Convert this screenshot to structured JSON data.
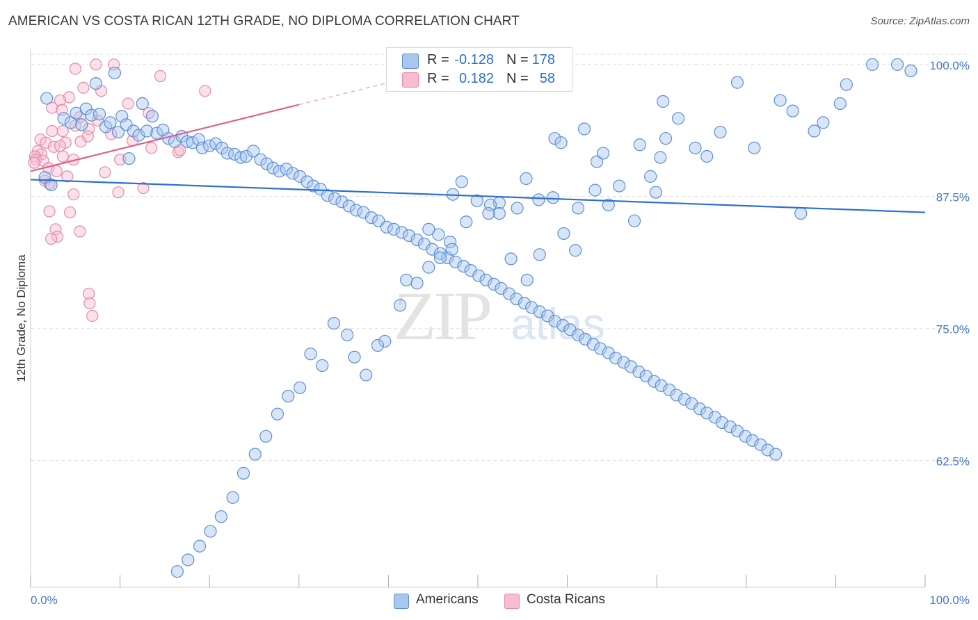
{
  "title": "AMERICAN VS COSTA RICAN 12TH GRADE, NO DIPLOMA CORRELATION CHART",
  "source": "Source: ZipAtlas.com",
  "watermark": {
    "zip": "ZIP",
    "atlas": "atlas"
  },
  "colors": {
    "blue_fill": "#a9c6ee",
    "blue_stroke": "#5b8fd6",
    "blue_line": "#2d6fd2",
    "pink_fill": "#f7bcd0",
    "pink_stroke": "#e68aa8",
    "pink_line": "#e0608a",
    "axis_text": "#4477cc",
    "grid": "#dddddd"
  },
  "legend": {
    "rows": [
      {
        "r_label": "R =",
        "r_value": "-0.128",
        "n_label": "N =",
        "n_value": "178"
      },
      {
        "r_label": "R =",
        "r_value": "0.182",
        "n_label": "N =",
        "n_value": "58"
      }
    ]
  },
  "bottom_legend": {
    "americans": "Americans",
    "costa_ricans": "Costa Ricans"
  },
  "chart_data": {
    "type": "scatter",
    "title": "AMERICAN VS COSTA RICAN 12TH GRADE, NO DIPLOMA CORRELATION CHART",
    "xlabel": "",
    "ylabel": "12th Grade, No Diploma",
    "xlim": [
      0,
      100
    ],
    "ylim": [
      50.5,
      101.5
    ],
    "x_tick_labels": [
      "0.0%",
      "100.0%"
    ],
    "y_ticks": [
      62.5,
      75.0,
      87.5,
      100.0
    ],
    "y_tick_labels": [
      "62.5%",
      "75.0%",
      "87.5%",
      "100.0%"
    ],
    "grid": true,
    "series": [
      {
        "name": "Americans",
        "r": -0.128,
        "n": 178,
        "trend": {
          "x": [
            0,
            100
          ],
          "y": [
            89.1,
            86.0
          ],
          "dashed_from": null
        },
        "points": [
          [
            1.8,
            96.8
          ],
          [
            7.3,
            98.2
          ],
          [
            9.4,
            99.2
          ],
          [
            12.5,
            96.3
          ],
          [
            13.6,
            95.1
          ],
          [
            8.4,
            94.1
          ],
          [
            9.8,
            93.6
          ],
          [
            11.0,
            91.1
          ],
          [
            1.6,
            89.3
          ],
          [
            2.3,
            88.6
          ],
          [
            3.7,
            94.9
          ],
          [
            4.5,
            94.5
          ],
          [
            5.1,
            95.4
          ],
          [
            5.7,
            94.3
          ],
          [
            6.2,
            95.8
          ],
          [
            6.8,
            95.2
          ],
          [
            7.7,
            95.3
          ],
          [
            8.9,
            94.5
          ],
          [
            10.2,
            95.1
          ],
          [
            10.7,
            94.3
          ],
          [
            11.5,
            93.7
          ],
          [
            12.1,
            93.3
          ],
          [
            13.0,
            93.7
          ],
          [
            14.1,
            93.5
          ],
          [
            14.8,
            93.8
          ],
          [
            15.4,
            93.0
          ],
          [
            16.1,
            92.7
          ],
          [
            16.9,
            93.2
          ],
          [
            17.5,
            92.7
          ],
          [
            18.1,
            92.6
          ],
          [
            18.8,
            92.9
          ],
          [
            19.2,
            92.1
          ],
          [
            20.0,
            92.3
          ],
          [
            20.7,
            92.5
          ],
          [
            21.4,
            92.1
          ],
          [
            22.0,
            91.6
          ],
          [
            22.8,
            91.5
          ],
          [
            23.5,
            91.2
          ],
          [
            24.1,
            91.3
          ],
          [
            24.9,
            91.8
          ],
          [
            25.7,
            91.0
          ],
          [
            26.4,
            90.6
          ],
          [
            27.1,
            90.2
          ],
          [
            27.8,
            89.9
          ],
          [
            28.6,
            90.1
          ],
          [
            29.3,
            89.7
          ],
          [
            30.1,
            89.4
          ],
          [
            30.9,
            88.9
          ],
          [
            31.6,
            88.5
          ],
          [
            32.4,
            88.2
          ],
          [
            33.2,
            87.6
          ],
          [
            34.0,
            87.3
          ],
          [
            34.8,
            87.0
          ],
          [
            35.6,
            86.6
          ],
          [
            36.4,
            86.2
          ],
          [
            37.2,
            86.0
          ],
          [
            38.1,
            85.5
          ],
          [
            38.9,
            85.2
          ],
          [
            39.8,
            84.6
          ],
          [
            40.6,
            84.4
          ],
          [
            41.5,
            84.1
          ],
          [
            42.3,
            83.8
          ],
          [
            43.2,
            83.4
          ],
          [
            44.0,
            83.0
          ],
          [
            44.9,
            82.5
          ],
          [
            45.8,
            82.1
          ],
          [
            46.6,
            81.7
          ],
          [
            47.5,
            81.3
          ],
          [
            48.4,
            80.9
          ],
          [
            49.2,
            80.5
          ],
          [
            50.1,
            80.0
          ],
          [
            50.9,
            79.6
          ],
          [
            51.8,
            79.2
          ],
          [
            52.6,
            78.8
          ],
          [
            53.5,
            78.3
          ],
          [
            54.3,
            77.8
          ],
          [
            55.2,
            77.4
          ],
          [
            56.0,
            77.0
          ],
          [
            56.9,
            76.6
          ],
          [
            57.8,
            76.2
          ],
          [
            58.6,
            75.7
          ],
          [
            59.5,
            75.3
          ],
          [
            60.3,
            74.9
          ],
          [
            61.2,
            74.4
          ],
          [
            62.0,
            74.0
          ],
          [
            62.9,
            73.5
          ],
          [
            63.7,
            73.1
          ],
          [
            64.6,
            72.7
          ],
          [
            65.4,
            72.2
          ],
          [
            66.3,
            71.8
          ],
          [
            67.1,
            71.4
          ],
          [
            68.0,
            70.9
          ],
          [
            68.8,
            70.5
          ],
          [
            69.7,
            70.0
          ],
          [
            70.5,
            69.6
          ],
          [
            71.4,
            69.2
          ],
          [
            72.2,
            68.7
          ],
          [
            73.1,
            68.3
          ],
          [
            73.9,
            67.9
          ],
          [
            74.8,
            67.4
          ],
          [
            75.6,
            67.0
          ],
          [
            76.5,
            66.6
          ],
          [
            77.3,
            66.1
          ],
          [
            78.2,
            65.7
          ],
          [
            79.0,
            65.3
          ],
          [
            79.9,
            64.8
          ],
          [
            80.7,
            64.4
          ],
          [
            81.6,
            64.0
          ],
          [
            82.4,
            63.5
          ],
          [
            83.3,
            63.1
          ],
          [
            68.1,
            92.4
          ],
          [
            70.4,
            91.2
          ],
          [
            69.9,
            87.9
          ],
          [
            71.0,
            93.0
          ],
          [
            63.3,
            90.8
          ],
          [
            64.0,
            91.6
          ],
          [
            64.6,
            86.7
          ],
          [
            61.2,
            86.4
          ],
          [
            58.6,
            93.0
          ],
          [
            59.3,
            92.6
          ],
          [
            55.4,
            89.2
          ],
          [
            54.4,
            86.4
          ],
          [
            56.8,
            87.2
          ],
          [
            52.4,
            86.9
          ],
          [
            51.4,
            86.7
          ],
          [
            48.2,
            88.9
          ],
          [
            47.2,
            87.7
          ],
          [
            46.9,
            83.2
          ],
          [
            45.6,
            83.9
          ],
          [
            44.5,
            84.4
          ],
          [
            86.1,
            85.9
          ],
          [
            87.6,
            93.7
          ],
          [
            91.2,
            98.1
          ],
          [
            94.1,
            100.0
          ],
          [
            96.9,
            100.0
          ],
          [
            98.4,
            99.4
          ],
          [
            90.5,
            96.3
          ],
          [
            88.6,
            94.5
          ],
          [
            85.2,
            95.6
          ],
          [
            83.8,
            96.6
          ],
          [
            80.9,
            92.1
          ],
          [
            79.0,
            98.3
          ],
          [
            77.1,
            93.6
          ],
          [
            75.6,
            91.3
          ],
          [
            74.3,
            92.1
          ],
          [
            72.4,
            94.9
          ],
          [
            70.7,
            96.5
          ],
          [
            69.3,
            89.4
          ],
          [
            67.5,
            85.2
          ],
          [
            65.8,
            88.5
          ],
          [
            63.1,
            88.1
          ],
          [
            61.9,
            93.9
          ],
          [
            60.9,
            82.4
          ],
          [
            59.6,
            84.0
          ],
          [
            58.4,
            87.4
          ],
          [
            56.9,
            82.0
          ],
          [
            55.5,
            79.6
          ],
          [
            53.7,
            81.6
          ],
          [
            52.4,
            85.9
          ],
          [
            51.2,
            85.9
          ],
          [
            49.9,
            87.1
          ],
          [
            48.7,
            85.1
          ],
          [
            47.1,
            82.5
          ],
          [
            45.8,
            81.7
          ],
          [
            44.5,
            80.8
          ],
          [
            43.2,
            79.3
          ],
          [
            42.0,
            79.6
          ],
          [
            41.3,
            77.2
          ],
          [
            39.6,
            73.8
          ],
          [
            38.8,
            73.4
          ],
          [
            37.5,
            70.6
          ],
          [
            36.2,
            72.3
          ],
          [
            35.4,
            74.4
          ],
          [
            33.9,
            75.5
          ],
          [
            32.6,
            71.5
          ],
          [
            31.3,
            72.6
          ],
          [
            30.1,
            69.4
          ],
          [
            28.8,
            68.6
          ],
          [
            27.6,
            66.9
          ],
          [
            26.3,
            64.8
          ],
          [
            25.1,
            63.1
          ],
          [
            23.8,
            61.3
          ],
          [
            22.6,
            59.0
          ],
          [
            21.3,
            57.2
          ],
          [
            20.1,
            55.8
          ],
          [
            18.9,
            54.4
          ],
          [
            17.6,
            53.1
          ],
          [
            16.4,
            52.0
          ]
        ]
      },
      {
        "name": "Costa Ricans",
        "r": 0.182,
        "n": 58,
        "trend": {
          "x": [
            0,
            30,
            42
          ],
          "y": [
            89.9,
            96.2,
            98.7
          ],
          "dashed_from": 30
        },
        "points": [
          [
            7.3,
            100.0
          ],
          [
            9.3,
            100.0
          ],
          [
            5.0,
            99.6
          ],
          [
            14.5,
            98.9
          ],
          [
            5.9,
            97.8
          ],
          [
            7.9,
            97.5
          ],
          [
            4.3,
            96.9
          ],
          [
            3.3,
            96.6
          ],
          [
            10.9,
            96.3
          ],
          [
            2.4,
            95.9
          ],
          [
            3.5,
            95.7
          ],
          [
            5.5,
            95.0
          ],
          [
            7.5,
            94.7
          ],
          [
            5.0,
            94.2
          ],
          [
            6.5,
            93.9
          ],
          [
            2.4,
            93.7
          ],
          [
            3.6,
            93.7
          ],
          [
            1.1,
            92.9
          ],
          [
            3.9,
            92.6
          ],
          [
            5.6,
            92.7
          ],
          [
            6.4,
            93.2
          ],
          [
            1.7,
            92.6
          ],
          [
            2.6,
            92.2
          ],
          [
            0.8,
            91.8
          ],
          [
            1.2,
            91.5
          ],
          [
            0.5,
            91.3
          ],
          [
            0.6,
            91.0
          ],
          [
            1.4,
            90.9
          ],
          [
            3.6,
            91.3
          ],
          [
            4.8,
            91.0
          ],
          [
            10.0,
            91.0
          ],
          [
            16.5,
            91.7
          ],
          [
            0.4,
            90.7
          ],
          [
            2.0,
            90.2
          ],
          [
            2.9,
            89.9
          ],
          [
            8.3,
            89.8
          ],
          [
            4.1,
            89.4
          ],
          [
            1.6,
            89.0
          ],
          [
            2.1,
            88.7
          ],
          [
            9.8,
            87.9
          ],
          [
            12.6,
            88.3
          ],
          [
            4.8,
            87.7
          ],
          [
            2.1,
            86.1
          ],
          [
            4.4,
            86.0
          ],
          [
            2.8,
            84.4
          ],
          [
            3.0,
            83.7
          ],
          [
            2.3,
            83.5
          ],
          [
            5.5,
            84.2
          ],
          [
            6.5,
            78.3
          ],
          [
            6.6,
            77.4
          ],
          [
            6.9,
            76.2
          ],
          [
            19.5,
            97.5
          ],
          [
            16.7,
            91.9
          ],
          [
            13.5,
            92.1
          ],
          [
            11.4,
            92.8
          ],
          [
            9.0,
            93.4
          ],
          [
            13.2,
            95.4
          ],
          [
            3.3,
            92.3
          ]
        ]
      }
    ]
  }
}
